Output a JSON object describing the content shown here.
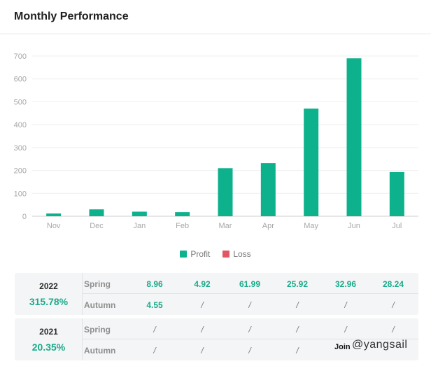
{
  "header": {
    "title": "Monthly Performance"
  },
  "chart_data": {
    "type": "bar",
    "categories": [
      "Nov",
      "Dec",
      "Jan",
      "Feb",
      "Mar",
      "Apr",
      "May",
      "Jun",
      "Jul"
    ],
    "series": [
      {
        "name": "Profit",
        "color": "#0db28c",
        "values": [
          12,
          30,
          20,
          18,
          210,
          232,
          470,
          690,
          193
        ]
      },
      {
        "name": "Loss",
        "color": "#e15763",
        "values": [
          0,
          0,
          0,
          0,
          0,
          0,
          0,
          0,
          0
        ]
      }
    ],
    "yticks": [
      0,
      100,
      200,
      300,
      400,
      500,
      600,
      700
    ],
    "ylim": [
      0,
      700
    ],
    "title": "",
    "xlabel": "",
    "ylabel": "",
    "grid": true,
    "legend": "bottom-center"
  },
  "legend": [
    {
      "label": "Profit",
      "color": "#0db28c"
    },
    {
      "label": "Loss",
      "color": "#e15763"
    }
  ],
  "years": [
    {
      "year": "2022",
      "total": "315.78%",
      "rows": [
        {
          "season": "Spring",
          "values": [
            "8.96",
            "4.92",
            "61.99",
            "25.92",
            "32.96",
            "28.24"
          ]
        },
        {
          "season": "Autumn",
          "values": [
            "4.55",
            "/",
            "/",
            "/",
            "/",
            "/"
          ]
        }
      ]
    },
    {
      "year": "2021",
      "total": "20.35%",
      "rows": [
        {
          "season": "Spring",
          "values": [
            "/",
            "/",
            "/",
            "/",
            "/",
            "/"
          ]
        },
        {
          "season": "Autumn",
          "values": [
            "/",
            "/",
            "/",
            "/",
            "",
            ""
          ]
        }
      ]
    }
  ],
  "watermark": {
    "join": "Join",
    "handle": "@yangsail"
  }
}
